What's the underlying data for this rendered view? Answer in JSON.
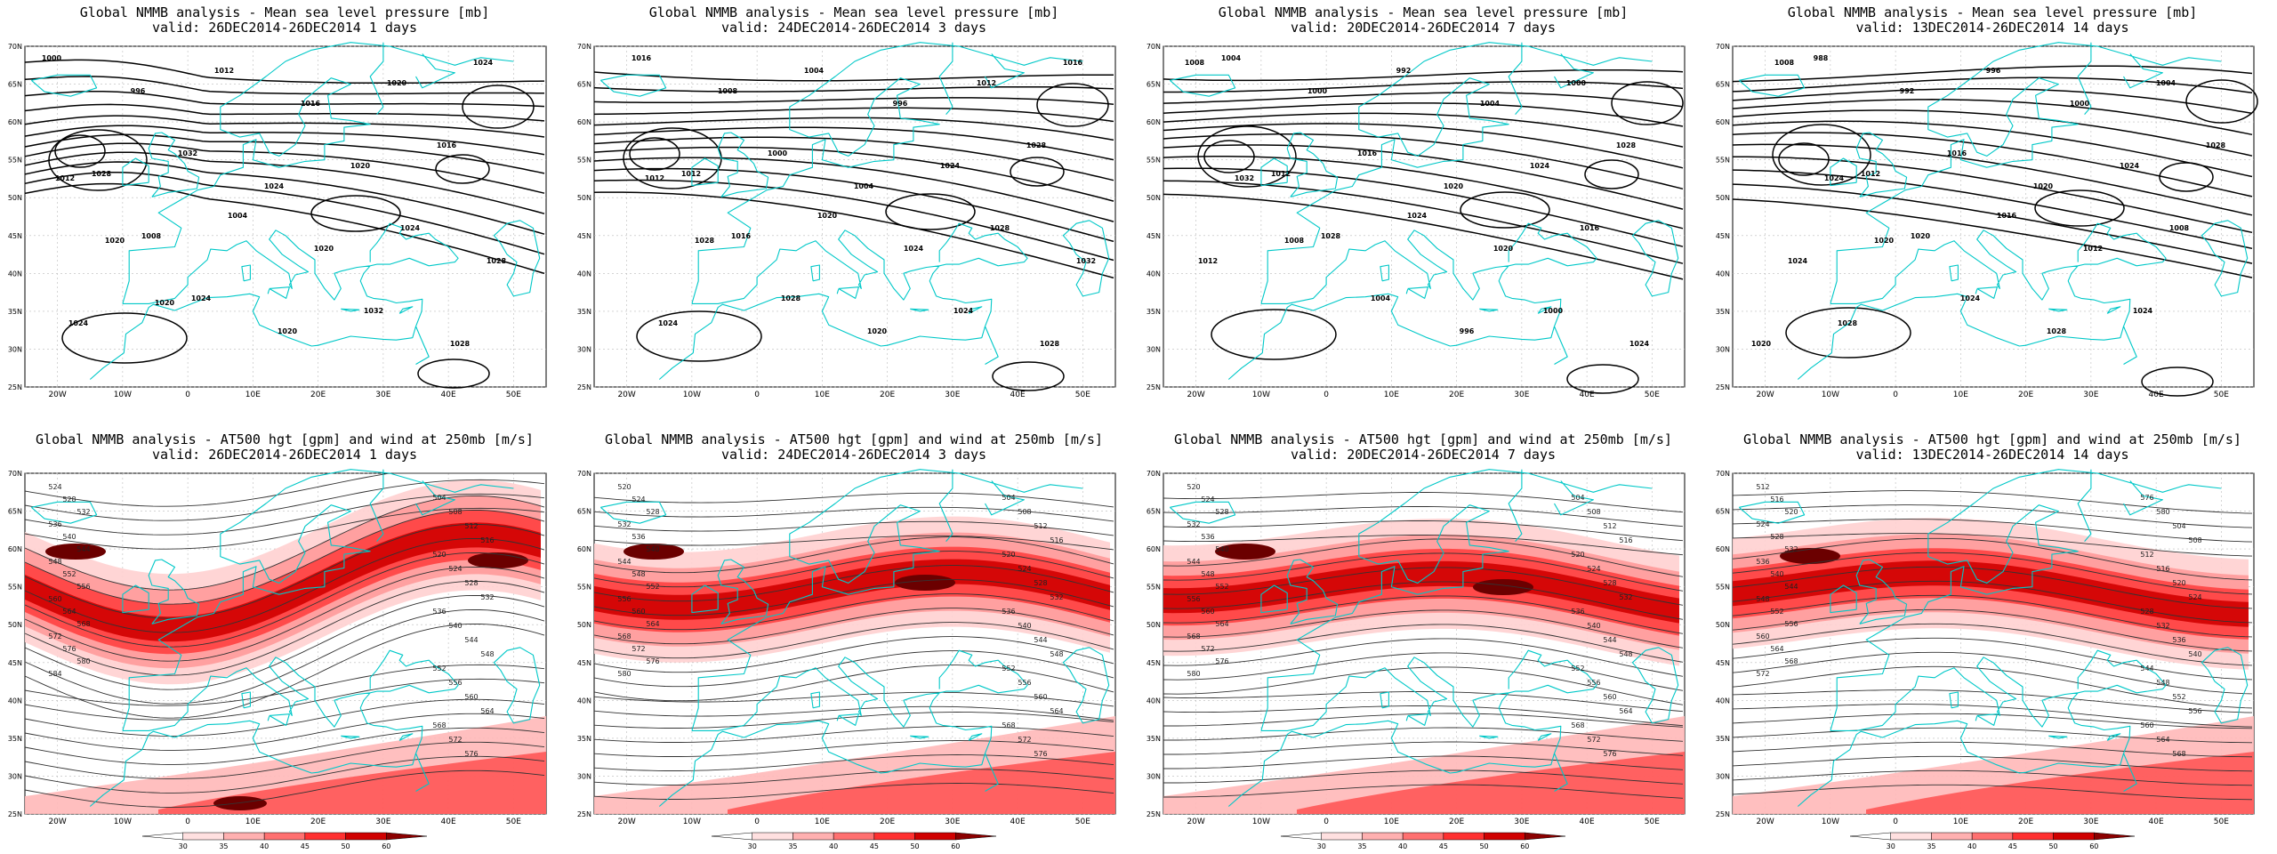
{
  "top_row": [
    {
      "title": "Global NMMB analysis - Mean sea level pressure [mb]",
      "valid": "valid: 26DEC2014-26DEC2014   1 days"
    },
    {
      "title": "Global NMMB analysis - Mean sea level pressure [mb]",
      "valid": "valid: 24DEC2014-26DEC2014   3 days"
    },
    {
      "title": "Global NMMB analysis - Mean sea level pressure [mb]",
      "valid": "valid: 20DEC2014-26DEC2014   7 days"
    },
    {
      "title": "Global NMMB analysis - Mean sea level pressure [mb]",
      "valid": "valid: 13DEC2014-26DEC2014   14 days"
    }
  ],
  "bottom_row": [
    {
      "title": "Global NMMB analysis - AT500 hgt [gpm] and wind at 250mb [m/s]",
      "valid": "valid: 26DEC2014-26DEC2014   1 days"
    },
    {
      "title": "Global NMMB analysis - AT500 hgt [gpm] and wind at 250mb [m/s]",
      "valid": "valid: 24DEC2014-26DEC2014   3 days"
    },
    {
      "title": "Global NMMB analysis - AT500 hgt [gpm] and wind at 250mb [m/s]",
      "valid": "valid: 20DEC2014-26DEC2014   7 days"
    },
    {
      "title": "Global NMMB analysis - AT500 hgt [gpm] and wind at 250mb [m/s]",
      "valid": "valid: 13DEC2014-26DEC2014   14 days"
    }
  ],
  "lat_labels": [
    "70N",
    "65N",
    "60N",
    "55N",
    "50N",
    "45N",
    "40N",
    "35N",
    "30N",
    "25N"
  ],
  "lon_labels": [
    "20W",
    "10W",
    "0",
    "10E",
    "20E",
    "30E",
    "40E",
    "50E"
  ],
  "colorbar_labels": [
    "30",
    "35",
    "40",
    "45",
    "50",
    "60"
  ],
  "colors": {
    "coast": "#00c8c8",
    "contour": "#000000",
    "wind_light": "#ffb0b0",
    "wind_mid": "#ff3030",
    "wind_dark": "#8b0000"
  },
  "mslp_panels": [
    {
      "labels": [
        [
          "1000",
          ""
        ],
        [
          "996",
          ""
        ],
        [
          "1012",
          ""
        ],
        [
          "1016",
          ""
        ],
        [
          "1020",
          ""
        ],
        [
          "1024",
          ""
        ],
        [
          "1028",
          ""
        ],
        [
          "1032",
          ""
        ],
        [
          "1024",
          ""
        ],
        [
          "1020",
          ""
        ],
        [
          "1016",
          ""
        ],
        [
          "1012",
          ""
        ],
        [
          "1008",
          ""
        ],
        [
          "1004",
          ""
        ],
        [
          "1020",
          ""
        ],
        [
          "1024",
          ""
        ],
        [
          "1028",
          ""
        ],
        [
          "1020",
          ""
        ],
        [
          "1024",
          ""
        ],
        [
          "1020",
          ""
        ],
        [
          "1032",
          ""
        ],
        [
          "1028",
          ""
        ],
        [
          "1024",
          ""
        ],
        [
          "1020",
          ""
        ]
      ]
    },
    {
      "labels": [
        [
          "1016",
          ""
        ],
        [
          "1008",
          ""
        ],
        [
          "1004",
          ""
        ],
        [
          "996",
          ""
        ],
        [
          "1012",
          ""
        ],
        [
          "1016",
          ""
        ],
        [
          "1012",
          ""
        ],
        [
          "1000",
          ""
        ],
        [
          "1004",
          ""
        ],
        [
          "1024",
          ""
        ],
        [
          "1028",
          ""
        ],
        [
          "1012",
          ""
        ],
        [
          "1016",
          ""
        ],
        [
          "1020",
          ""
        ],
        [
          "1024",
          ""
        ],
        [
          "1028",
          ""
        ],
        [
          "1032",
          ""
        ],
        [
          "1028",
          ""
        ],
        [
          "1028",
          ""
        ],
        [
          "1020",
          ""
        ],
        [
          "1024",
          ""
        ],
        [
          "1028",
          ""
        ],
        [
          "1024",
          ""
        ]
      ]
    },
    {
      "labels": [
        [
          "1004",
          ""
        ],
        [
          "1000",
          ""
        ],
        [
          "992",
          ""
        ],
        [
          "1004",
          ""
        ],
        [
          "1000",
          ""
        ],
        [
          "1008",
          ""
        ],
        [
          "1012",
          ""
        ],
        [
          "1016",
          ""
        ],
        [
          "1020",
          ""
        ],
        [
          "1024",
          ""
        ],
        [
          "1028",
          ""
        ],
        [
          "1032",
          ""
        ],
        [
          "1028",
          ""
        ],
        [
          "1024",
          ""
        ],
        [
          "1020",
          ""
        ],
        [
          "1016",
          ""
        ],
        [
          "1012",
          ""
        ],
        [
          "1008",
          ""
        ],
        [
          "1004",
          ""
        ],
        [
          "996",
          ""
        ],
        [
          "1000",
          ""
        ],
        [
          "1024",
          ""
        ]
      ]
    },
    {
      "labels": [
        [
          "988",
          ""
        ],
        [
          "992",
          ""
        ],
        [
          "996",
          ""
        ],
        [
          "1000",
          ""
        ],
        [
          "1004",
          ""
        ],
        [
          "1008",
          ""
        ],
        [
          "1012",
          ""
        ],
        [
          "1016",
          ""
        ],
        [
          "1020",
          ""
        ],
        [
          "1024",
          ""
        ],
        [
          "1028",
          ""
        ],
        [
          "1024",
          ""
        ],
        [
          "1020",
          ""
        ],
        [
          "1016",
          ""
        ],
        [
          "1012",
          ""
        ],
        [
          "1008",
          ""
        ],
        [
          "1024",
          ""
        ],
        [
          "1020",
          ""
        ],
        [
          "1024",
          ""
        ],
        [
          "1028",
          ""
        ],
        [
          "1024",
          ""
        ],
        [
          "1020",
          ""
        ],
        [
          "1028",
          ""
        ]
      ]
    }
  ],
  "z500_labels": [
    [
      "524",
      "528",
      "532",
      "536",
      "540",
      "544",
      "548",
      "552",
      "556",
      "560",
      "564",
      "568",
      "572",
      "576",
      "580",
      "584",
      "504",
      "508",
      "512",
      "516",
      "520",
      "524",
      "528",
      "532",
      "536",
      "540",
      "544",
      "548",
      "552",
      "556",
      "560",
      "564",
      "568",
      "572",
      "576"
    ],
    [
      "520",
      "524",
      "528",
      "532",
      "536",
      "540",
      "544",
      "548",
      "552",
      "556",
      "560",
      "564",
      "568",
      "572",
      "576",
      "580",
      "504",
      "508",
      "512",
      "516",
      "520",
      "524",
      "528",
      "532",
      "536",
      "540",
      "544",
      "548",
      "552",
      "556",
      "560",
      "564",
      "568",
      "572",
      "576"
    ],
    [
      "520",
      "524",
      "528",
      "532",
      "536",
      "540",
      "544",
      "548",
      "552",
      "556",
      "560",
      "564",
      "568",
      "572",
      "576",
      "580",
      "504",
      "508",
      "512",
      "516",
      "520",
      "524",
      "528",
      "532",
      "536",
      "540",
      "544",
      "548",
      "552",
      "556",
      "560",
      "564",
      "568",
      "572",
      "576"
    ],
    [
      "512",
      "516",
      "520",
      "524",
      "528",
      "532",
      "536",
      "540",
      "544",
      "548",
      "552",
      "556",
      "560",
      "564",
      "568",
      "572",
      "576",
      "580",
      "504",
      "508",
      "512",
      "516",
      "520",
      "524",
      "528",
      "532",
      "536",
      "540",
      "544",
      "548",
      "552",
      "556",
      "560",
      "564",
      "568"
    ]
  ]
}
